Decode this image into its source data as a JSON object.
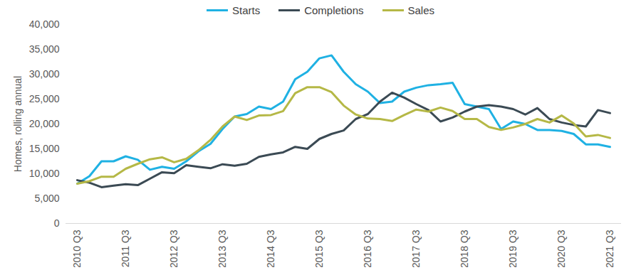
{
  "chart_data": {
    "type": "line",
    "y_label": "Homes, rolling annual",
    "legend": "top",
    "grid": false,
    "categories": [
      "2010 Q3",
      null,
      null,
      null,
      "2011 Q3",
      null,
      null,
      null,
      "2012 Q3",
      null,
      null,
      null,
      "2013 Q3",
      null,
      null,
      null,
      "2014 Q3",
      null,
      null,
      null,
      "2015 Q3",
      null,
      null,
      null,
      "2016 Q3",
      null,
      null,
      null,
      "2017 Q3",
      null,
      null,
      null,
      "2018 Q3",
      null,
      null,
      null,
      "2019 Q3",
      null,
      null,
      null,
      "2020 Q3",
      null,
      null,
      null,
      "2021 Q3"
    ],
    "series": [
      {
        "name": "Starts",
        "color": "#1fb1e3",
        "values": [
          8000,
          9500,
          12500,
          12500,
          13500,
          12800,
          10800,
          11400,
          11000,
          12500,
          14500,
          16000,
          19000,
          21500,
          22000,
          23500,
          23000,
          24500,
          29000,
          30500,
          33200,
          33800,
          30500,
          28000,
          26500,
          24200,
          24500,
          26500,
          27300,
          27800,
          28000,
          28300,
          24000,
          23500,
          23000,
          19000,
          20500,
          20000,
          18800,
          18800,
          18600,
          18000,
          15900,
          15900,
          15400
        ]
      },
      {
        "name": "Completions",
        "color": "#3b4a54",
        "values": [
          8700,
          8200,
          7300,
          7600,
          7900,
          7700,
          9000,
          10300,
          10100,
          11700,
          11400,
          11100,
          11900,
          11600,
          12000,
          13400,
          13900,
          14300,
          15400,
          15000,
          17000,
          18000,
          18700,
          21000,
          22000,
          24500,
          26300,
          25300,
          24000,
          22800,
          20500,
          21300,
          22500,
          23500,
          23800,
          23500,
          23000,
          21900,
          23200,
          21000,
          20300,
          19800,
          19500,
          22800,
          22200
        ]
      },
      {
        "name": "Sales",
        "color": "#b5b846",
        "values": [
          8000,
          8500,
          9400,
          9400,
          11000,
          12000,
          12900,
          13300,
          12300,
          13000,
          14700,
          16800,
          19500,
          21500,
          20800,
          21700,
          21800,
          22600,
          26200,
          27400,
          27400,
          26400,
          23700,
          21900,
          21100,
          21000,
          20600,
          21800,
          22900,
          22500,
          23300,
          22600,
          21000,
          21000,
          19400,
          18800,
          19300,
          20000,
          21000,
          20300,
          21700,
          20100,
          17500,
          17800,
          17200
        ]
      }
    ],
    "ylim": [
      0,
      40000
    ],
    "yticks": [
      0,
      {
        "value": 5000,
        "label": "5,000"
      },
      {
        "value": 10000,
        "label": "10,000"
      },
      {
        "value": 15000,
        "label": "15,000"
      },
      {
        "value": 20000,
        "label": "20,000"
      },
      {
        "value": 25000,
        "label": "25,000"
      },
      {
        "value": 30000,
        "label": "30,000"
      },
      {
        "value": 35000,
        "label": "35,000"
      },
      {
        "value": 40000,
        "label": "40,000"
      }
    ]
  }
}
